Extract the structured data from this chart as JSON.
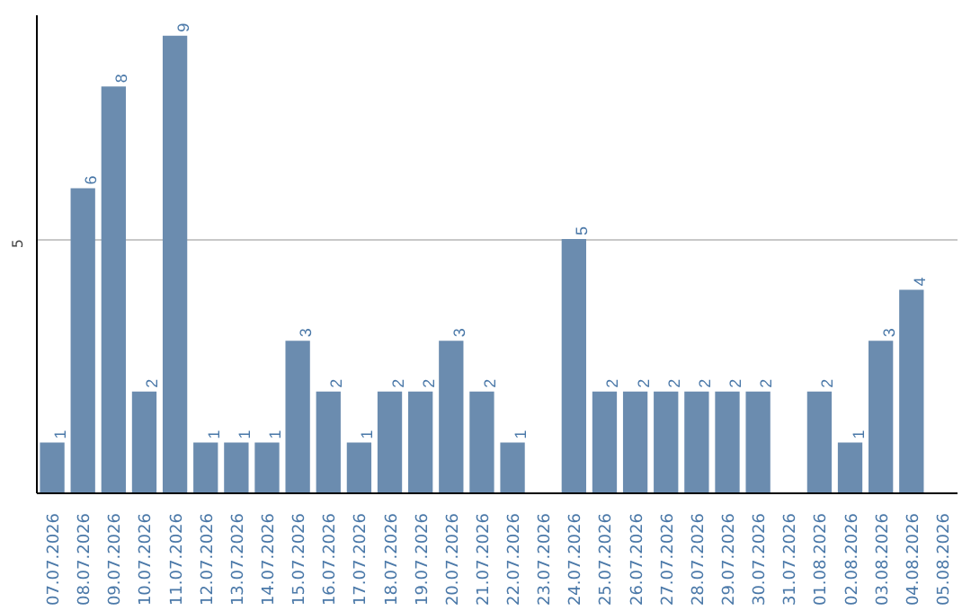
{
  "chart_data": {
    "type": "bar",
    "categories": [
      "07.07.2026",
      "08.07.2026",
      "09.07.2026",
      "10.07.2026",
      "11.07.2026",
      "12.07.2026",
      "13.07.2026",
      "14.07.2026",
      "15.07.2026",
      "16.07.2026",
      "17.07.2026",
      "18.07.2026",
      "19.07.2026",
      "20.07.2026",
      "21.07.2026",
      "22.07.2026",
      "23.07.2026",
      "24.07.2026",
      "25.07.2026",
      "26.07.2026",
      "27.07.2026",
      "28.07.2026",
      "29.07.2026",
      "30.07.2026",
      "31.07.2026",
      "01.08.2026",
      "02.08.2026",
      "03.08.2026",
      "04.08.2026",
      "05.08.2026"
    ],
    "values": [
      1,
      6,
      8,
      2,
      9,
      1,
      1,
      1,
      3,
      2,
      1,
      2,
      2,
      3,
      2,
      1,
      null,
      5,
      2,
      2,
      2,
      2,
      2,
      2,
      null,
      2,
      1,
      3,
      4,
      null
    ],
    "color": "#6b8caf",
    "ylim": [
      0,
      9.4
    ],
    "yticks": [
      5
    ],
    "grid": "y",
    "data_labels": true
  }
}
